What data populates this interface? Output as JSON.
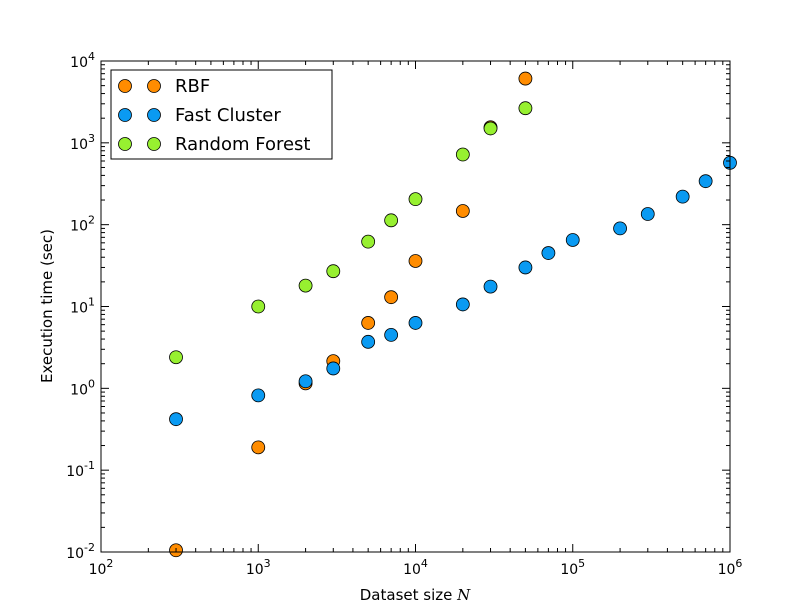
{
  "chart_data": {
    "type": "scatter",
    "xscale": "log",
    "yscale": "log",
    "xlim": [
      100,
      1000000
    ],
    "ylim": [
      0.01,
      10000
    ],
    "xlabel_text": "Dataset size",
    "xlabel_var": "N",
    "ylabel": "Execution time (sec)",
    "x_ticks": [
      {
        "base": "10",
        "exp": "2"
      },
      {
        "base": "10",
        "exp": "3"
      },
      {
        "base": "10",
        "exp": "4"
      },
      {
        "base": "10",
        "exp": "5"
      },
      {
        "base": "10",
        "exp": "6"
      }
    ],
    "y_ticks": [
      {
        "base": "10",
        "exp": "-2"
      },
      {
        "base": "10",
        "exp": "-1"
      },
      {
        "base": "10",
        "exp": "0"
      },
      {
        "base": "10",
        "exp": "1"
      },
      {
        "base": "10",
        "exp": "2"
      },
      {
        "base": "10",
        "exp": "3"
      },
      {
        "base": "10",
        "exp": "4"
      }
    ],
    "legend_position": "top-left",
    "series": [
      {
        "name": "RBF",
        "color": "#ff8c00",
        "points": [
          [
            300,
            0.0105
          ],
          [
            1000,
            0.19
          ],
          [
            2000,
            1.15
          ],
          [
            3000,
            2.15
          ],
          [
            5000,
            6.3
          ],
          [
            7000,
            13
          ],
          [
            10000,
            36
          ],
          [
            20000,
            147
          ],
          [
            30000,
            1550
          ],
          [
            50000,
            6100
          ]
        ]
      },
      {
        "name": "Fast Cluster",
        "color": "#0a9af2",
        "points": [
          [
            300,
            0.42
          ],
          [
            1000,
            0.82
          ],
          [
            2000,
            1.22
          ],
          [
            3000,
            1.75
          ],
          [
            5000,
            3.7
          ],
          [
            7000,
            4.5
          ],
          [
            10000,
            6.3
          ],
          [
            20000,
            10.6
          ],
          [
            30000,
            17.5
          ],
          [
            50000,
            30
          ],
          [
            70000,
            45
          ],
          [
            100000,
            65
          ],
          [
            200000,
            90
          ],
          [
            300000,
            135
          ],
          [
            500000,
            220
          ],
          [
            700000,
            340
          ],
          [
            1000000,
            570
          ]
        ]
      },
      {
        "name": "Random Forest",
        "color": "#97f030",
        "points": [
          [
            300,
            2.4
          ],
          [
            1000,
            10
          ],
          [
            2000,
            18
          ],
          [
            3000,
            27
          ],
          [
            5000,
            62
          ],
          [
            7000,
            113
          ],
          [
            10000,
            205
          ],
          [
            20000,
            720
          ],
          [
            30000,
            1500
          ],
          [
            50000,
            2650
          ]
        ]
      }
    ]
  }
}
